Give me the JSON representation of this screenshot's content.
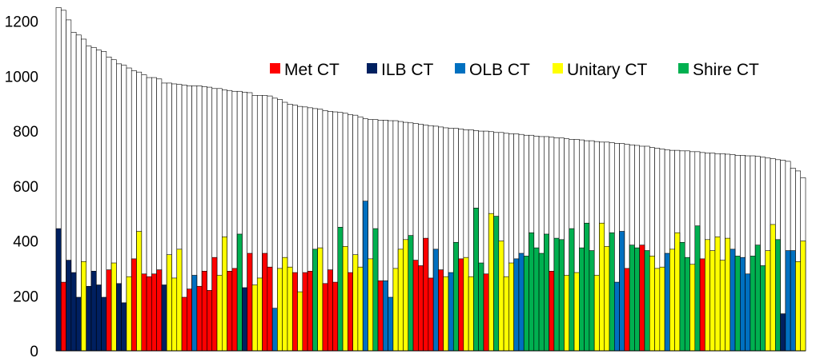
{
  "chart_data": {
    "type": "bar",
    "subtype": "overlapping bars: total (white) with coloured class value in front",
    "ylim": [
      0,
      1260
    ],
    "yticks": [
      0,
      200,
      400,
      600,
      800,
      1000,
      1200
    ],
    "ytick_labels": [
      "0",
      "200",
      "400",
      "600",
      "800",
      "1000",
      "1200"
    ],
    "grid": false,
    "legend_position": "top-right",
    "legend": [
      {
        "key": "met",
        "label": "Met CT",
        "color": "#ff0000"
      },
      {
        "key": "ilb",
        "label": "ILB CT",
        "color": "#002060"
      },
      {
        "key": "olb",
        "label": "OLB CT",
        "color": "#0070c0"
      },
      {
        "key": "unitary",
        "label": "Unitary CT",
        "color": "#ffff00"
      },
      {
        "key": "shire",
        "label": "Shire CT",
        "color": "#00b050"
      }
    ],
    "total_color": "#ffffff",
    "bars": [
      {
        "total": 1250,
        "value": 445,
        "class": "ilb"
      },
      {
        "total": 1240,
        "value": 250,
        "class": "met"
      },
      {
        "total": 1205,
        "value": 330,
        "class": "ilb"
      },
      {
        "total": 1160,
        "value": 285,
        "class": "ilb"
      },
      {
        "total": 1150,
        "value": 195,
        "class": "ilb"
      },
      {
        "total": 1135,
        "value": 325,
        "class": "unitary"
      },
      {
        "total": 1110,
        "value": 235,
        "class": "ilb"
      },
      {
        "total": 1105,
        "value": 290,
        "class": "ilb"
      },
      {
        "total": 1095,
        "value": 240,
        "class": "ilb"
      },
      {
        "total": 1090,
        "value": 195,
        "class": "ilb"
      },
      {
        "total": 1070,
        "value": 295,
        "class": "met"
      },
      {
        "total": 1060,
        "value": 320,
        "class": "unitary"
      },
      {
        "total": 1045,
        "value": 245,
        "class": "ilb"
      },
      {
        "total": 1040,
        "value": 175,
        "class": "ilb"
      },
      {
        "total": 1030,
        "value": 270,
        "class": "unitary"
      },
      {
        "total": 1020,
        "value": 335,
        "class": "met"
      },
      {
        "total": 1015,
        "value": 435,
        "class": "unitary"
      },
      {
        "total": 1005,
        "value": 280,
        "class": "met"
      },
      {
        "total": 995,
        "value": 270,
        "class": "met"
      },
      {
        "total": 995,
        "value": 280,
        "class": "met"
      },
      {
        "total": 990,
        "value": 295,
        "class": "met"
      },
      {
        "total": 975,
        "value": 240,
        "class": "ilb"
      },
      {
        "total": 975,
        "value": 350,
        "class": "unitary"
      },
      {
        "total": 972,
        "value": 265,
        "class": "unitary"
      },
      {
        "total": 970,
        "value": 370,
        "class": "unitary"
      },
      {
        "total": 968,
        "value": 195,
        "class": "met"
      },
      {
        "total": 965,
        "value": 225,
        "class": "met"
      },
      {
        "total": 965,
        "value": 275,
        "class": "olb"
      },
      {
        "total": 965,
        "value": 235,
        "class": "met"
      },
      {
        "total": 962,
        "value": 290,
        "class": "met"
      },
      {
        "total": 960,
        "value": 220,
        "class": "met"
      },
      {
        "total": 955,
        "value": 340,
        "class": "met"
      },
      {
        "total": 955,
        "value": 275,
        "class": "unitary"
      },
      {
        "total": 950,
        "value": 415,
        "class": "unitary"
      },
      {
        "total": 948,
        "value": 290,
        "class": "met"
      },
      {
        "total": 945,
        "value": 300,
        "class": "met"
      },
      {
        "total": 945,
        "value": 425,
        "class": "shire"
      },
      {
        "total": 942,
        "value": 230,
        "class": "ilb"
      },
      {
        "total": 940,
        "value": 355,
        "class": "met"
      },
      {
        "total": 930,
        "value": 240,
        "class": "unitary"
      },
      {
        "total": 930,
        "value": 265,
        "class": "unitary"
      },
      {
        "total": 930,
        "value": 355,
        "class": "met"
      },
      {
        "total": 928,
        "value": 305,
        "class": "met"
      },
      {
        "total": 920,
        "value": 155,
        "class": "olb"
      },
      {
        "total": 915,
        "value": 300,
        "class": "unitary"
      },
      {
        "total": 905,
        "value": 340,
        "class": "unitary"
      },
      {
        "total": 898,
        "value": 305,
        "class": "unitary"
      },
      {
        "total": 895,
        "value": 285,
        "class": "met"
      },
      {
        "total": 890,
        "value": 215,
        "class": "unitary"
      },
      {
        "total": 888,
        "value": 285,
        "class": "met"
      },
      {
        "total": 885,
        "value": 290,
        "class": "met"
      },
      {
        "total": 882,
        "value": 370,
        "class": "shire"
      },
      {
        "total": 880,
        "value": 375,
        "class": "unitary"
      },
      {
        "total": 875,
        "value": 245,
        "class": "met"
      },
      {
        "total": 872,
        "value": 295,
        "class": "met"
      },
      {
        "total": 870,
        "value": 250,
        "class": "met"
      },
      {
        "total": 868,
        "value": 450,
        "class": "shire"
      },
      {
        "total": 865,
        "value": 380,
        "class": "unitary"
      },
      {
        "total": 860,
        "value": 285,
        "class": "met"
      },
      {
        "total": 858,
        "value": 350,
        "class": "unitary"
      },
      {
        "total": 852,
        "value": 305,
        "class": "unitary"
      },
      {
        "total": 845,
        "value": 545,
        "class": "olb"
      },
      {
        "total": 842,
        "value": 335,
        "class": "unitary"
      },
      {
        "total": 842,
        "value": 445,
        "class": "shire"
      },
      {
        "total": 840,
        "value": 255,
        "class": "met"
      },
      {
        "total": 840,
        "value": 255,
        "class": "olb"
      },
      {
        "total": 838,
        "value": 195,
        "class": "olb"
      },
      {
        "total": 838,
        "value": 300,
        "class": "unitary"
      },
      {
        "total": 835,
        "value": 370,
        "class": "unitary"
      },
      {
        "total": 832,
        "value": 405,
        "class": "unitary"
      },
      {
        "total": 830,
        "value": 420,
        "class": "shire"
      },
      {
        "total": 828,
        "value": 330,
        "class": "met"
      },
      {
        "total": 825,
        "value": 310,
        "class": "met"
      },
      {
        "total": 822,
        "value": 410,
        "class": "met"
      },
      {
        "total": 820,
        "value": 265,
        "class": "met"
      },
      {
        "total": 818,
        "value": 370,
        "class": "olb"
      },
      {
        "total": 815,
        "value": 295,
        "class": "met"
      },
      {
        "total": 812,
        "value": 270,
        "class": "unitary"
      },
      {
        "total": 810,
        "value": 285,
        "class": "olb"
      },
      {
        "total": 810,
        "value": 395,
        "class": "shire"
      },
      {
        "total": 808,
        "value": 335,
        "class": "met"
      },
      {
        "total": 805,
        "value": 340,
        "class": "unitary"
      },
      {
        "total": 805,
        "value": 270,
        "class": "unitary"
      },
      {
        "total": 802,
        "value": 520,
        "class": "shire"
      },
      {
        "total": 800,
        "value": 320,
        "class": "shire"
      },
      {
        "total": 800,
        "value": 280,
        "class": "met"
      },
      {
        "total": 798,
        "value": 500,
        "class": "unitary"
      },
      {
        "total": 795,
        "value": 490,
        "class": "shire"
      },
      {
        "total": 795,
        "value": 400,
        "class": "unitary"
      },
      {
        "total": 792,
        "value": 270,
        "class": "unitary"
      },
      {
        "total": 790,
        "value": 320,
        "class": "unitary"
      },
      {
        "total": 790,
        "value": 335,
        "class": "olb"
      },
      {
        "total": 788,
        "value": 355,
        "class": "olb"
      },
      {
        "total": 785,
        "value": 345,
        "class": "shire"
      },
      {
        "total": 785,
        "value": 430,
        "class": "shire"
      },
      {
        "total": 782,
        "value": 375,
        "class": "shire"
      },
      {
        "total": 780,
        "value": 355,
        "class": "shire"
      },
      {
        "total": 780,
        "value": 425,
        "class": "shire"
      },
      {
        "total": 778,
        "value": 290,
        "class": "met"
      },
      {
        "total": 775,
        "value": 410,
        "class": "shire"
      },
      {
        "total": 775,
        "value": 405,
        "class": "shire"
      },
      {
        "total": 772,
        "value": 275,
        "class": "unitary"
      },
      {
        "total": 770,
        "value": 445,
        "class": "shire"
      },
      {
        "total": 770,
        "value": 285,
        "class": "unitary"
      },
      {
        "total": 768,
        "value": 375,
        "class": "shire"
      },
      {
        "total": 765,
        "value": 465,
        "class": "shire"
      },
      {
        "total": 765,
        "value": 365,
        "class": "shire"
      },
      {
        "total": 762,
        "value": 275,
        "class": "unitary"
      },
      {
        "total": 760,
        "value": 465,
        "class": "unitary"
      },
      {
        "total": 760,
        "value": 380,
        "class": "unitary"
      },
      {
        "total": 758,
        "value": 430,
        "class": "shire"
      },
      {
        "total": 755,
        "value": 250,
        "class": "olb"
      },
      {
        "total": 755,
        "value": 435,
        "class": "olb"
      },
      {
        "total": 752,
        "value": 300,
        "class": "met"
      },
      {
        "total": 750,
        "value": 385,
        "class": "shire"
      },
      {
        "total": 748,
        "value": 375,
        "class": "shire"
      },
      {
        "total": 745,
        "value": 385,
        "class": "met"
      },
      {
        "total": 745,
        "value": 365,
        "class": "shire"
      },
      {
        "total": 740,
        "value": 345,
        "class": "unitary"
      },
      {
        "total": 738,
        "value": 300,
        "class": "unitary"
      },
      {
        "total": 735,
        "value": 305,
        "class": "unitary"
      },
      {
        "total": 732,
        "value": 355,
        "class": "olb"
      },
      {
        "total": 730,
        "value": 370,
        "class": "unitary"
      },
      {
        "total": 730,
        "value": 430,
        "class": "unitary"
      },
      {
        "total": 728,
        "value": 395,
        "class": "shire"
      },
      {
        "total": 728,
        "value": 340,
        "class": "shire"
      },
      {
        "total": 725,
        "value": 315,
        "class": "unitary"
      },
      {
        "total": 725,
        "value": 455,
        "class": "shire"
      },
      {
        "total": 722,
        "value": 335,
        "class": "met"
      },
      {
        "total": 720,
        "value": 405,
        "class": "unitary"
      },
      {
        "total": 720,
        "value": 365,
        "class": "unitary"
      },
      {
        "total": 718,
        "value": 415,
        "class": "unitary"
      },
      {
        "total": 718,
        "value": 330,
        "class": "unitary"
      },
      {
        "total": 716,
        "value": 410,
        "class": "unitary"
      },
      {
        "total": 715,
        "value": 370,
        "class": "olb"
      },
      {
        "total": 712,
        "value": 345,
        "class": "shire"
      },
      {
        "total": 712,
        "value": 340,
        "class": "olb"
      },
      {
        "total": 710,
        "value": 280,
        "class": "olb"
      },
      {
        "total": 710,
        "value": 345,
        "class": "shire"
      },
      {
        "total": 708,
        "value": 385,
        "class": "shire"
      },
      {
        "total": 705,
        "value": 310,
        "class": "shire"
      },
      {
        "total": 702,
        "value": 365,
        "class": "unitary"
      },
      {
        "total": 700,
        "value": 460,
        "class": "unitary"
      },
      {
        "total": 696,
        "value": 405,
        "class": "shire"
      },
      {
        "total": 694,
        "value": 135,
        "class": "ilb"
      },
      {
        "total": 690,
        "value": 365,
        "class": "olb"
      },
      {
        "total": 665,
        "value": 365,
        "class": "olb"
      },
      {
        "total": 655,
        "value": 325,
        "class": "unitary"
      },
      {
        "total": 630,
        "value": 400,
        "class": "unitary"
      }
    ]
  }
}
